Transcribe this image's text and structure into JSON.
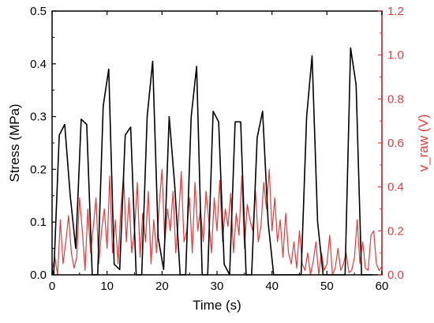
{
  "chart_data": {
    "type": "line",
    "xlabel": "Time (s)",
    "ylabel_left": "Stress (MPa)",
    "ylabel_right": "v_raw (V)",
    "xlim": [
      0,
      60
    ],
    "ylim_left": [
      0,
      0.5
    ],
    "ylim_right": [
      0,
      1.2
    ],
    "xticks": [
      "0",
      "10",
      "20",
      "30",
      "40",
      "50",
      "60"
    ],
    "yticks_left": [
      "0.0",
      "0.1",
      "0.2",
      "0.3",
      "0.4",
      "0.5"
    ],
    "yticks_right": [
      "0.0",
      "0.2",
      "0.4",
      "0.6",
      "0.8",
      "1.0",
      "1.2"
    ],
    "colors": {
      "stress": "#000000",
      "v_raw": "#e8383a",
      "axis_right": "#e8383a"
    },
    "grid": false,
    "series": [
      {
        "axis": "left",
        "x": [
          0,
          0.3,
          1.3,
          2.3,
          3.3,
          4.3,
          5.3,
          6.3,
          7.3,
          8.3,
          9.3,
          10.3,
          11.3,
          12.3,
          13.3,
          14.3,
          15.3,
          16.3,
          17.3,
          18.3,
          19.3,
          20.3,
          21.3,
          22.3,
          23.3,
          24.3,
          25.3,
          26.3,
          27.3,
          28.3,
          29.3,
          30.3,
          31.3,
          32.3,
          33.3,
          34.3,
          35.3,
          36.3,
          37.3,
          38.3,
          39.3,
          40.3,
          41.3,
          42.3,
          43.3,
          44.3,
          45.3,
          46.3,
          47.3,
          48.3,
          49.3,
          50.3,
          51.3,
          52.3,
          53.3,
          54.3,
          55.3,
          56.3,
          57.3,
          58.3
        ],
        "values": [
          0.01,
          0.0,
          0.265,
          0.285,
          0.15,
          0.05,
          0.295,
          0.285,
          0.0,
          0.0,
          0.32,
          0.39,
          0.02,
          0.01,
          0.265,
          0.28,
          0.0,
          0.0,
          0.3,
          0.405,
          0.07,
          0.01,
          0.3,
          0.17,
          0.0,
          0.0,
          0.3,
          0.395,
          0.0,
          0.0,
          0.31,
          0.29,
          0.02,
          0.0,
          0.29,
          0.29,
          0.0,
          0.0,
          0.26,
          0.31,
          0.1,
          0.0,
          0.0,
          0.0,
          0.0,
          0.0,
          0.0,
          0.3,
          0.415,
          0.1,
          0.0,
          0.0,
          0.0,
          0.0,
          0.0,
          0.43,
          0.36,
          0.0,
          0.0,
          0.0
        ]
      },
      {
        "axis": "right",
        "x": [
          0,
          0.5,
          1,
          1.5,
          2,
          2.5,
          3,
          3.5,
          4,
          4.5,
          5,
          5.5,
          6,
          6.5,
          7,
          7.5,
          8,
          8.5,
          9,
          9.5,
          10,
          10.5,
          11,
          11.5,
          12,
          12.5,
          13,
          13.5,
          14,
          14.5,
          15,
          15.5,
          16,
          16.5,
          17,
          17.5,
          18,
          18.5,
          19,
          19.5,
          20,
          20.5,
          21,
          21.5,
          22,
          22.5,
          23,
          23.5,
          24,
          24.5,
          25,
          25.5,
          26,
          26.5,
          27,
          27.5,
          28,
          28.5,
          29,
          29.5,
          30,
          30.5,
          31,
          31.5,
          32,
          32.5,
          33,
          33.5,
          34,
          34.5,
          35,
          35.5,
          36,
          36.5,
          37,
          37.5,
          38,
          38.5,
          39,
          39.5,
          40,
          40.5,
          41,
          41.5,
          42,
          42.5,
          43,
          43.5,
          44,
          44.5,
          45,
          45.5,
          46,
          46.5,
          47,
          47.5,
          48,
          48.5,
          49,
          49.5,
          50,
          50.5,
          51,
          51.5,
          52,
          52.5,
          53,
          53.5,
          54,
          54.5,
          55,
          55.5,
          56,
          56.5,
          57,
          57.5,
          58,
          58.5,
          59,
          59.5,
          60
        ],
        "values": [
          0.02,
          0.08,
          0.0,
          0.25,
          0.05,
          0.15,
          0.27,
          0.1,
          0.03,
          0.08,
          0.35,
          0.2,
          0.02,
          0.3,
          0.1,
          0.22,
          0.35,
          0.05,
          0.2,
          0.3,
          0.12,
          0.45,
          0.1,
          0.25,
          0.05,
          0.3,
          0.45,
          0.15,
          0.35,
          0.1,
          0.2,
          0.42,
          0.08,
          0.28,
          0.15,
          0.38,
          0.05,
          0.25,
          0.1,
          0.32,
          0.48,
          0.15,
          0.3,
          0.2,
          0.38,
          0.1,
          0.25,
          0.47,
          0.15,
          0.2,
          0.35,
          0.1,
          0.42,
          0.2,
          0.3,
          0.15,
          0.38,
          0.25,
          0.1,
          0.35,
          0.2,
          0.43,
          0.15,
          0.3,
          0.22,
          0.37,
          0.1,
          0.28,
          0.18,
          0.45,
          0.12,
          0.32,
          0.25,
          0.2,
          0.38,
          0.15,
          0.22,
          0.42,
          0.3,
          0.48,
          0.2,
          0.35,
          0.15,
          0.25,
          0.08,
          0.28,
          0.1,
          0.05,
          0.15,
          0.03,
          0.2,
          0.05,
          0.02,
          0.1,
          0.0,
          0.06,
          0.15,
          0.0,
          0.1,
          0.02,
          0.05,
          0.18,
          0.0,
          0.03,
          0.12,
          0.02,
          0.05,
          0.1,
          0.01,
          0.02,
          0.08,
          0.25,
          0.05,
          0.15,
          0.03,
          0.02,
          0.18,
          0.2,
          0.05,
          0.02,
          0.04
        ]
      }
    ]
  }
}
